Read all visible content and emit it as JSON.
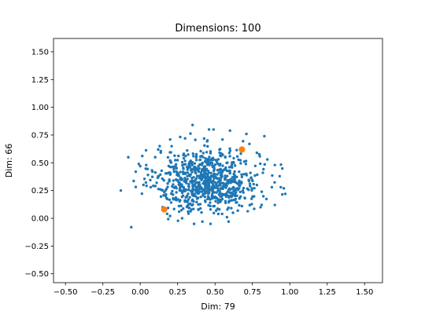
{
  "chart_data": {
    "type": "scatter",
    "title": "Dimensions: 100",
    "xlabel": "Dim: 79",
    "ylabel": "Dim: 66",
    "xlim": [
      -0.58,
      1.62
    ],
    "ylim": [
      -0.58,
      1.62
    ],
    "xticks": [
      "−0.50",
      "−0.25",
      "0.00",
      "0.25",
      "0.50",
      "0.75",
      "1.00",
      "1.25",
      "1.50"
    ],
    "yticks": [
      "−0.50",
      "−0.25",
      "0.00",
      "0.25",
      "0.50",
      "0.75",
      "1.00",
      "1.25",
      "1.50"
    ],
    "grid": false,
    "series": [
      {
        "color": "#1f77b4",
        "cluster": {
          "count": 800,
          "mean": [
            0.45,
            0.34
          ],
          "std": [
            0.17,
            0.14
          ]
        },
        "points": [
          [
            -0.13,
            0.25
          ],
          [
            -0.08,
            0.55
          ],
          [
            -0.06,
            -0.08
          ],
          [
            -0.03,
            0.42
          ],
          [
            0.0,
            0.47
          ],
          [
            0.04,
            0.48
          ],
          [
            0.1,
            0.55
          ],
          [
            0.11,
            0.32
          ],
          [
            0.12,
            0.38
          ],
          [
            0.13,
            0.65
          ],
          [
            0.15,
            0.1
          ],
          [
            0.17,
            0.2
          ],
          [
            0.12,
            0.62
          ],
          [
            0.18,
            0.04
          ],
          [
            0.2,
            0.71
          ],
          [
            0.35,
            0.84
          ],
          [
            0.46,
            0.8
          ],
          [
            0.49,
            0.8
          ],
          [
            0.6,
            0.79
          ],
          [
            0.71,
            0.76
          ],
          [
            0.83,
            0.74
          ],
          [
            0.78,
            0.59
          ],
          [
            0.85,
            0.53
          ],
          [
            0.9,
            0.48
          ],
          [
            0.96,
            0.27
          ],
          [
            0.97,
            0.22
          ],
          [
            0.94,
            0.28
          ],
          [
            0.88,
            0.28
          ],
          [
            0.9,
            0.12
          ],
          [
            0.68,
            0.11
          ],
          [
            0.62,
            0.05
          ],
          [
            0.47,
            -0.05
          ],
          [
            0.36,
            -0.05
          ],
          [
            0.28,
            0.0
          ],
          [
            0.22,
            0.18
          ],
          [
            0.3,
            0.72
          ],
          [
            0.55,
            0.71
          ],
          [
            0.73,
            0.67
          ],
          [
            0.7,
            0.18
          ],
          [
            0.78,
            0.3
          ],
          [
            0.26,
            0.06
          ],
          [
            0.58,
            0.01
          ],
          [
            0.82,
            0.41
          ],
          [
            0.2,
            0.52
          ],
          [
            0.07,
            0.28
          ]
        ]
      },
      {
        "color": "#ff7f0e",
        "points": [
          [
            0.16,
            0.08
          ],
          [
            0.68,
            0.62
          ]
        ]
      }
    ]
  }
}
